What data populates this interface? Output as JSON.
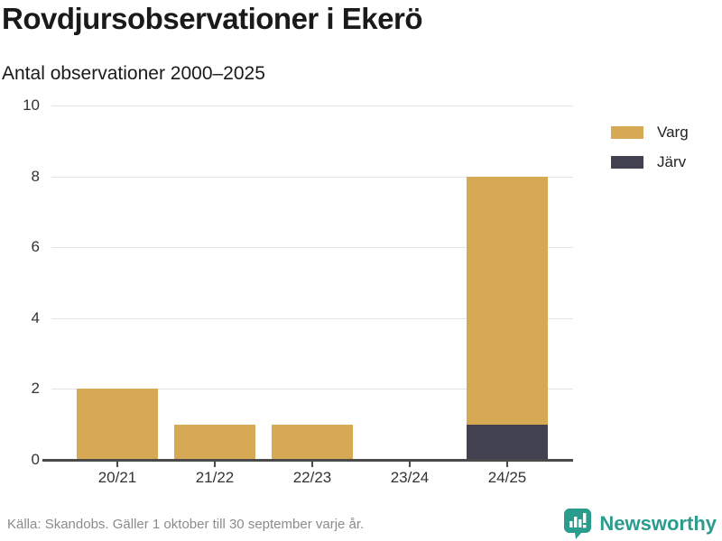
{
  "title": "Rovdjursobservationer i Ekerö",
  "subtitle": "Antal observationer 2000–2025",
  "chart_data": {
    "type": "bar",
    "stacked": true,
    "categories": [
      "20/21",
      "21/22",
      "22/23",
      "23/24",
      "24/25"
    ],
    "series": [
      {
        "name": "Varg",
        "color": "#d8a955",
        "values": [
          2,
          1,
          1,
          0,
          7
        ]
      },
      {
        "name": "Järv",
        "color": "#42414f",
        "values": [
          0,
          0,
          0,
          0,
          1
        ]
      }
    ],
    "stack_bottom_to_top": [
      "Järv",
      "Varg"
    ],
    "title": "Rovdjursobservationer i Ekerö",
    "subtitle": "Antal observationer 2000–2025",
    "xlabel": "",
    "ylabel": "",
    "ylim": [
      0,
      10
    ],
    "yticks": [
      0,
      2,
      4,
      6,
      8,
      10
    ],
    "grid": true,
    "legend_position": "right"
  },
  "legend": {
    "items": [
      {
        "label": "Varg",
        "color": "#d8a955"
      },
      {
        "label": "Järv",
        "color": "#42414f"
      }
    ]
  },
  "footer": {
    "source": "Källa: Skandobs. Gäller 1 oktober till 30 september varje år.",
    "brand": "Newsworthy",
    "brand_color": "#2a9c8e"
  },
  "colors": {
    "axis": "#4a4a4a",
    "grid": "#e4e4e4"
  }
}
